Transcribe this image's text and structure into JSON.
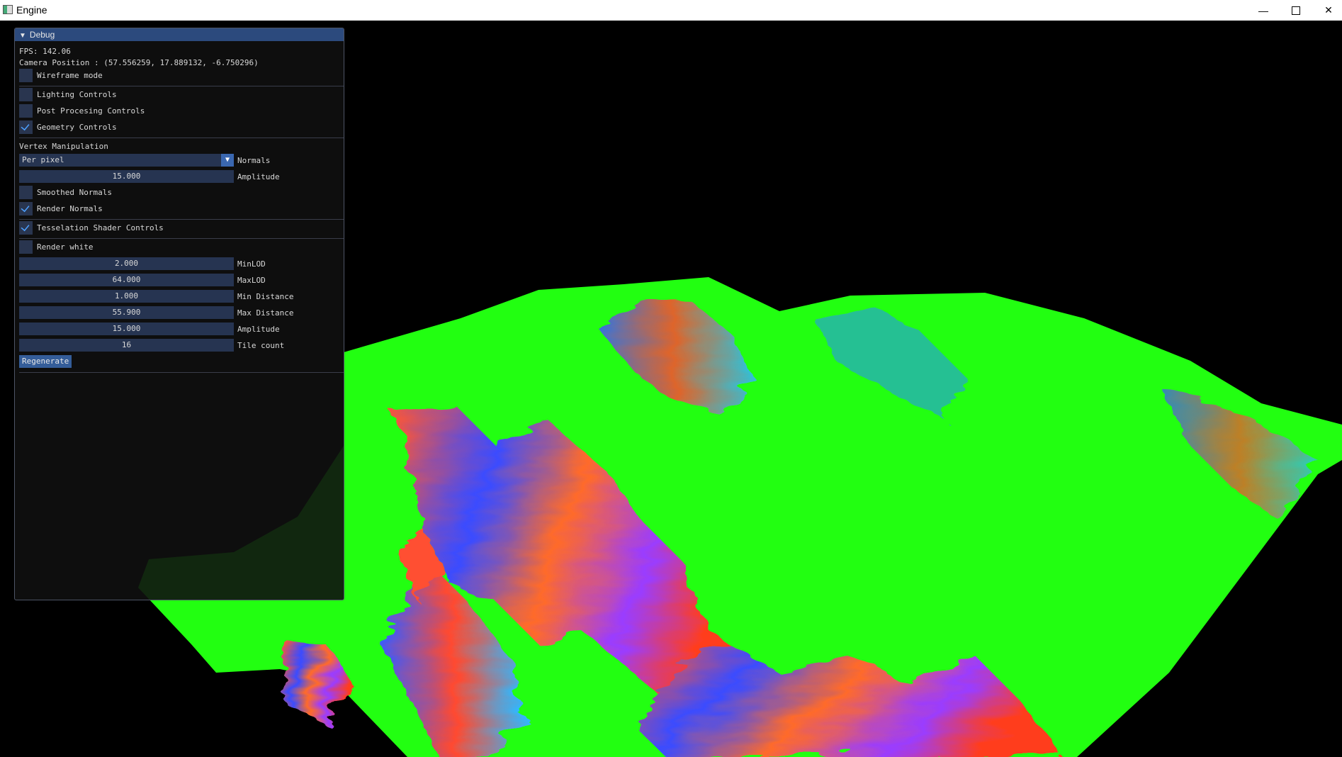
{
  "window": {
    "title": "Engine"
  },
  "debug": {
    "title": "Debug",
    "fps": "FPS: 142.06",
    "camera": "Camera Position : (57.556259, 17.889132, -6.750296)",
    "wireframe": "Wireframe mode",
    "lighting": "Lighting Controls",
    "postprocessing": "Post Procesing Controls",
    "geometry": "Geometry Controls",
    "vertex_section": "Vertex Manipulation",
    "normals_mode": {
      "value": "Per pixel",
      "label": "Normals"
    },
    "vertex_amplitude": {
      "value": "15.000",
      "label": "Amplitude"
    },
    "smoothed_normals": "Smoothed Normals",
    "render_normals": "Render Normals",
    "tess_controls": "Tesselation Shader Controls",
    "render_white": "Render white",
    "min_lod": {
      "value": "2.000",
      "label": "MinLOD"
    },
    "max_lod": {
      "value": "64.000",
      "label": "MaxLOD"
    },
    "min_distance": {
      "value": "1.000",
      "label": "Min Distance"
    },
    "max_distance": {
      "value": "55.900",
      "label": "Max Distance"
    },
    "tess_amplitude": {
      "value": "15.000",
      "label": "Amplitude"
    },
    "tile_count": {
      "value": "16",
      "label": "Tile count"
    },
    "regenerate": "Regenerate"
  }
}
